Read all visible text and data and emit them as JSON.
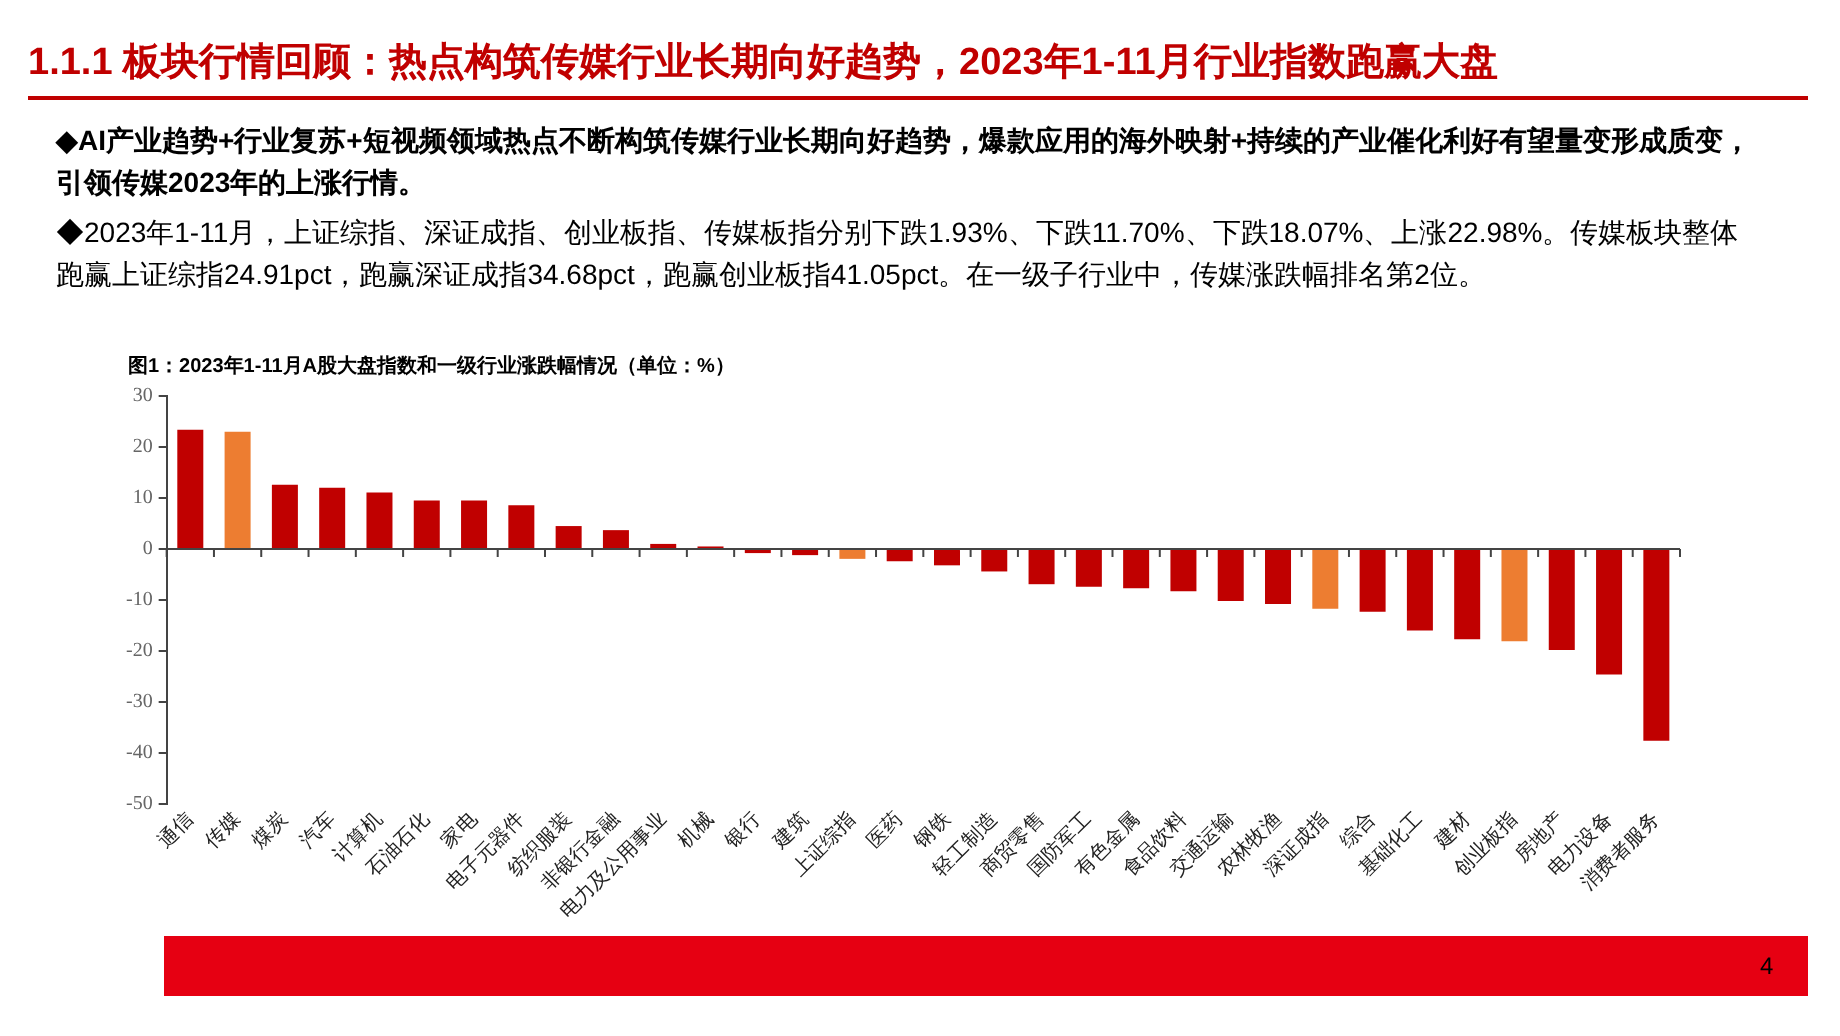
{
  "chart_data": {
    "type": "bar",
    "title": "1.1.1 板块行情回顾：热点构筑传媒行业长期向好趋势，2023年1-11月行业指数跑赢大盘",
    "subtitle": "图1：2023年1-11月A股大盘指数和一级行业涨跌幅情况（单位：%）",
    "annotations": [
      "◆AI产业趋势+行业复苏+短视频领域热点不断构筑传媒行业长期向好趋势，爆款应用的海外映射+持续的产业催化利好有望量变形成质变，引领传媒2023年的上涨行情。",
      "◆2023年1-11月，上证综指、深证成指、创业板指、传媒板指分别下跌1.93%、下跌11.70%、下跌18.07%、上涨22.98%。传媒板块整体跑赢上证综指24.91pct，跑赢深证成指34.68pct，跑赢创业板指41.05pct。在一级子行业中，传媒涨跌幅排名第2位。",
      "4"
    ],
    "categories": [
      "通信",
      "传媒",
      "煤炭",
      "汽车",
      "计算机",
      "石油石化",
      "家电",
      "电子元器件",
      "纺织服装",
      "非银行金融",
      "电力及公用事业",
      "机械",
      "银行",
      "建筑",
      "上证综指",
      "医药",
      "钢铁",
      "轻工制造",
      "商贸零售",
      "国防军工",
      "有色金属",
      "食品饮料",
      "交通运输",
      "农林牧渔",
      "深证成指",
      "综合",
      "基础化工",
      "建材",
      "创业板指",
      "房地产",
      "电力设备",
      "消费者服务"
    ],
    "values": [
      23.4,
      22.98,
      12.6,
      12.0,
      11.1,
      9.5,
      9.5,
      8.6,
      4.5,
      3.7,
      1.0,
      0.5,
      -0.8,
      -1.2,
      -1.93,
      -2.4,
      -3.2,
      -4.4,
      -6.9,
      -7.4,
      -7.7,
      -8.3,
      -10.2,
      -10.8,
      -11.7,
      -12.3,
      -16.0,
      -17.7,
      -18.07,
      -19.8,
      -24.6,
      -37.6
    ],
    "colors": [
      "#c00000",
      "#ed7d31",
      "#c00000",
      "#c00000",
      "#c00000",
      "#c00000",
      "#c00000",
      "#c00000",
      "#c00000",
      "#c00000",
      "#c00000",
      "#c00000",
      "#c00000",
      "#c00000",
      "#ed7d31",
      "#c00000",
      "#c00000",
      "#c00000",
      "#c00000",
      "#c00000",
      "#c00000",
      "#c00000",
      "#c00000",
      "#c00000",
      "#ed7d31",
      "#c00000",
      "#c00000",
      "#c00000",
      "#ed7d31",
      "#c00000",
      "#c00000",
      "#c00000"
    ],
    "ylim": [
      -50,
      30
    ],
    "yticks": [
      -50,
      -40,
      -30,
      -20,
      -10,
      0,
      10,
      20,
      30
    ]
  }
}
